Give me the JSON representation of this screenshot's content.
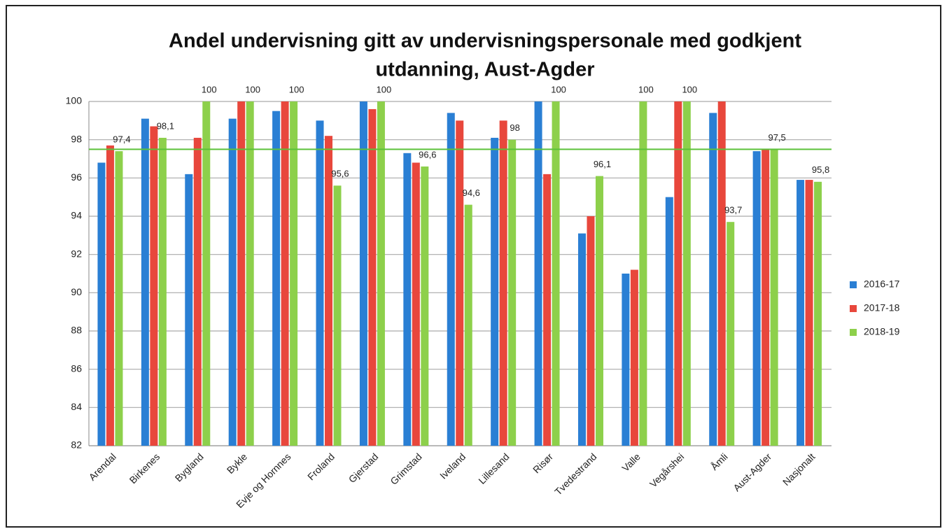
{
  "chart_data": {
    "type": "bar",
    "title": [
      "Andel undervisning gitt av undervisningspersonale med  godkjent",
      "utdanning, Aust-Agder"
    ],
    "categories": [
      "Arendal",
      "Birkenes",
      "Bygland",
      "Bykle",
      "Evje og Hornnes",
      "Froland",
      "Gjerstad",
      "Grimstad",
      "Iveland",
      "Lillesand",
      "Risør",
      "Tvedestrand",
      "Valle",
      "Vegårshei",
      "Åmli",
      "Aust-Agder",
      "Nasjonalt"
    ],
    "series": [
      {
        "name": "2016-17",
        "color": "#2a7fd4",
        "values": [
          96.8,
          99.1,
          96.2,
          99.1,
          99.5,
          99.0,
          100,
          97.3,
          99.4,
          98.1,
          100,
          93.1,
          91.0,
          95.0,
          99.4,
          97.4,
          95.9
        ]
      },
      {
        "name": "2017-18",
        "color": "#e8473c",
        "values": [
          97.7,
          98.7,
          98.1,
          100,
          100,
          98.2,
          99.6,
          96.8,
          99.0,
          99.0,
          96.2,
          94.0,
          91.2,
          100,
          100,
          97.5,
          95.9
        ]
      },
      {
        "name": "2018-19",
        "color": "#8dd04b",
        "values": [
          97.4,
          98.1,
          100,
          100,
          100,
          95.6,
          100,
          96.6,
          94.6,
          98,
          100,
          96.1,
          100,
          100,
          93.7,
          97.5,
          95.8
        ],
        "value_labels": [
          "97,4",
          "98,1",
          "100",
          "100",
          "100",
          "95,6",
          "100",
          "96,6",
          "94,6",
          "98",
          "100",
          "96,1",
          "100",
          "100",
          "93,7",
          "97,5",
          "95,8"
        ]
      }
    ],
    "reference_line": 97.5,
    "ylim": [
      82,
      100
    ],
    "yticks": [
      82,
      84,
      86,
      88,
      90,
      92,
      94,
      96,
      98,
      100
    ],
    "grid": true,
    "legend": "right"
  }
}
